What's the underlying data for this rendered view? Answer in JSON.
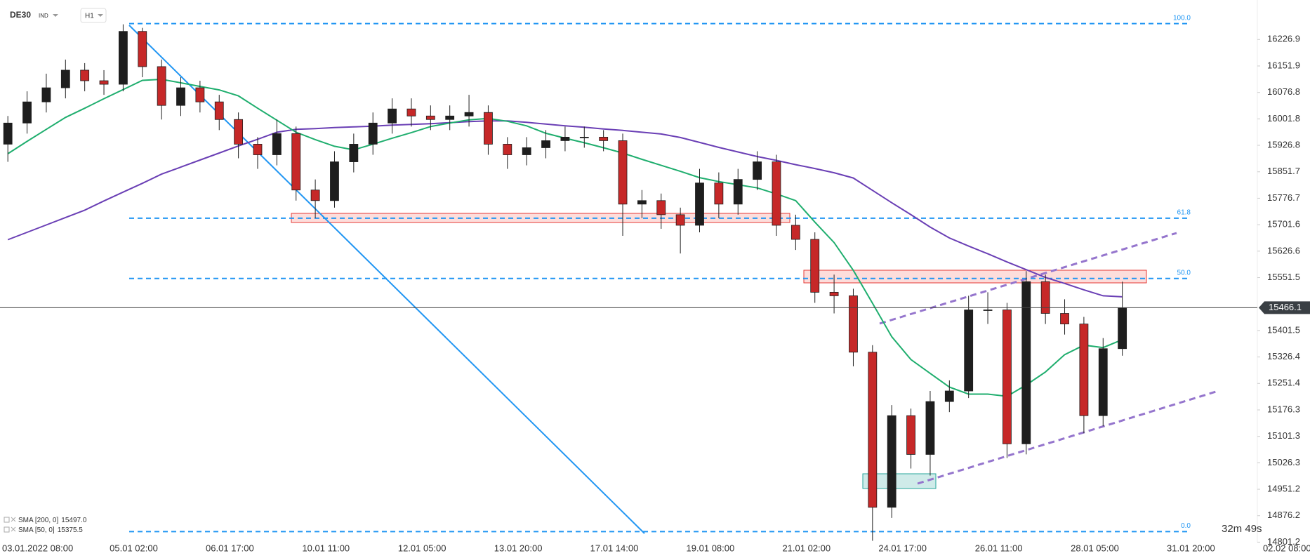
{
  "chart_data": {
    "type": "candlestick",
    "symbol": "DE30",
    "instrument_type": "IND",
    "timeframe": "H1",
    "up_color": "#1e1e1e",
    "down_color": "#c62828",
    "ylim": [
      14800,
      16339
    ],
    "yticks": [
      16226.9,
      16151.9,
      16076.8,
      16001.8,
      15926.8,
      15851.7,
      15776.7,
      15701.6,
      15626.6,
      15551.5,
      15401.5,
      15326.4,
      15251.4,
      15176.3,
      15101.3,
      15026.3,
      14951.2,
      14876.2,
      14801.2
    ],
    "xtick_labels": [
      "03.01.2022  08:00",
      "05.01  02:00",
      "06.01  17:00",
      "10.01  11:00",
      "12.01  05:00",
      "13.01  20:00",
      "17.01  14:00",
      "19.01  08:00",
      "21.01  02:00",
      "24.01  17:00",
      "26.01  11:00",
      "28.01  05:00",
      "31.01  20:00",
      "02.02  08:00"
    ],
    "candles": [
      [
        15930,
        16010,
        15880,
        15990
      ],
      [
        15990,
        16080,
        15960,
        16050
      ],
      [
        16050,
        16130,
        16020,
        16090
      ],
      [
        16090,
        16170,
        16060,
        16140
      ],
      [
        16140,
        16160,
        16080,
        16110
      ],
      [
        16110,
        16140,
        16070,
        16100
      ],
      [
        16100,
        16270,
        16080,
        16250
      ],
      [
        16250,
        16260,
        16120,
        16150
      ],
      [
        16150,
        16170,
        16000,
        16040
      ],
      [
        16040,
        16120,
        16010,
        16090
      ],
      [
        16090,
        16110,
        16020,
        16050
      ],
      [
        16050,
        16070,
        15970,
        16000
      ],
      [
        16000,
        16020,
        15890,
        15930
      ],
      [
        15930,
        15950,
        15860,
        15900
      ],
      [
        15900,
        16000,
        15870,
        15960
      ],
      [
        15960,
        15980,
        15770,
        15800
      ],
      [
        15800,
        15830,
        15720,
        15770
      ],
      [
        15770,
        15910,
        15750,
        15880
      ],
      [
        15880,
        15960,
        15850,
        15930
      ],
      [
        15930,
        16020,
        15900,
        15990
      ],
      [
        15990,
        16060,
        15960,
        16030
      ],
      [
        16030,
        16060,
        15980,
        16010
      ],
      [
        16010,
        16040,
        15970,
        16000
      ],
      [
        16000,
        16040,
        15970,
        16010
      ],
      [
        16010,
        16070,
        15980,
        16020
      ],
      [
        16020,
        16040,
        15900,
        15930
      ],
      [
        15930,
        15950,
        15860,
        15900
      ],
      [
        15900,
        15950,
        15870,
        15920
      ],
      [
        15920,
        15970,
        15890,
        15940
      ],
      [
        15940,
        15980,
        15910,
        15950
      ],
      [
        15950,
        15980,
        15920,
        15950
      ],
      [
        15950,
        15970,
        15910,
        15940
      ],
      [
        15940,
        15960,
        15670,
        15760
      ],
      [
        15760,
        15800,
        15720,
        15770
      ],
      [
        15770,
        15790,
        15690,
        15730
      ],
      [
        15730,
        15750,
        15620,
        15700
      ],
      [
        15700,
        15860,
        15680,
        15820
      ],
      [
        15820,
        15850,
        15720,
        15760
      ],
      [
        15760,
        15860,
        15730,
        15830
      ],
      [
        15830,
        15910,
        15800,
        15880
      ],
      [
        15880,
        15900,
        15670,
        15700
      ],
      [
        15700,
        15730,
        15630,
        15660
      ],
      [
        15660,
        15680,
        15480,
        15510
      ],
      [
        15510,
        15560,
        15450,
        15500
      ],
      [
        15500,
        15520,
        15300,
        15340
      ],
      [
        15340,
        15360,
        14805,
        14900
      ],
      [
        14900,
        15190,
        14870,
        15160
      ],
      [
        15160,
        15180,
        15010,
        15050
      ],
      [
        15050,
        15230,
        14990,
        15200
      ],
      [
        15200,
        15260,
        15170,
        15230
      ],
      [
        15230,
        15500,
        15210,
        15460
      ],
      [
        15460,
        15510,
        15420,
        15460
      ],
      [
        15460,
        15480,
        15040,
        15080
      ],
      [
        15080,
        15570,
        15050,
        15540
      ],
      [
        15540,
        15560,
        15420,
        15450
      ],
      [
        15450,
        15490,
        15390,
        15420
      ],
      [
        15420,
        15440,
        15110,
        15160
      ],
      [
        15160,
        15380,
        15130,
        15350
      ],
      [
        15350,
        15540,
        15330,
        15466.1
      ]
    ],
    "series": [
      {
        "name": "SMA [200, 0]",
        "color": "#6a3fb5",
        "legend_value": {
          "value": 15497.0,
          "label": "15497.0"
        },
        "values": [
          15659,
          15680,
          15701,
          15722,
          15743,
          15769,
          15794,
          15819,
          15845,
          15865,
          15885,
          15905,
          15925,
          15944,
          15964,
          15972,
          15974,
          15977,
          15979,
          15981,
          15984,
          15986,
          15988,
          15991,
          15994,
          15996,
          15996,
          15992,
          15987,
          15982,
          15978,
          15973,
          15969,
          15964,
          15959,
          15949,
          15935,
          15921,
          15908,
          15895,
          15884,
          15872,
          15861,
          15849,
          15834,
          15799,
          15764,
          15730,
          15695,
          15664,
          15641,
          15619,
          15596,
          15574,
          15552,
          15535,
          15517,
          15500,
          15497
        ]
      },
      {
        "name": "SMA [50, 0]",
        "color": "#1fae6e",
        "legend_value": {
          "value": 15375.5,
          "label": "15375.5"
        },
        "values": [
          15903,
          15938,
          15972,
          16006,
          16032,
          16059,
          16085,
          16111,
          16114,
          16104,
          16094,
          16084,
          16067,
          16032,
          15998,
          15964,
          15943,
          15924,
          15914,
          15930,
          15947,
          15963,
          15980,
          15990,
          15999,
          16003,
          15995,
          15982,
          15961,
          15947,
          15934,
          15920,
          15905,
          15887,
          15870,
          15853,
          15835,
          15824,
          15815,
          15806,
          15789,
          15770,
          15709,
          15651,
          15572,
          15479,
          15384,
          15319,
          15280,
          15241,
          15221,
          15221,
          15215,
          15247,
          15284,
          15333,
          15360,
          15353,
          15375.5
        ]
      }
    ],
    "fib_levels": [
      {
        "label": "100.0",
        "value": 16272
      },
      {
        "label": "61.8",
        "value": 15720
      },
      {
        "label": "50.0",
        "value": 15549
      },
      {
        "label": "0.0",
        "value": 14831
      }
    ],
    "countdown": "32m 49s"
  }
}
